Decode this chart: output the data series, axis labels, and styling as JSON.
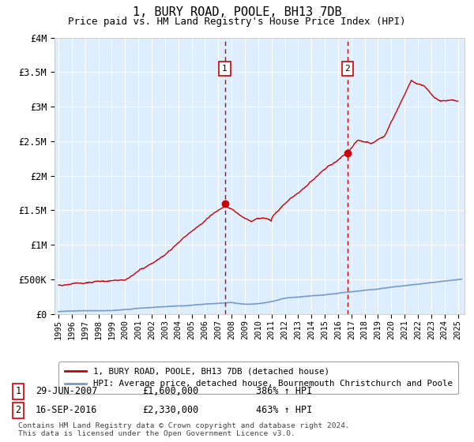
{
  "title": "1, BURY ROAD, POOLE, BH13 7DB",
  "subtitle": "Price paid vs. HM Land Registry's House Price Index (HPI)",
  "background_color": "#ffffff",
  "plot_bg_color": "#ddeeff",
  "grid_color": "#ffffff",
  "ylim": [
    0,
    4000000
  ],
  "yticks": [
    0,
    500000,
    1000000,
    1500000,
    2000000,
    2500000,
    3000000,
    3500000,
    4000000
  ],
  "ytick_labels": [
    "£0",
    "£500K",
    "£1M",
    "£1.5M",
    "£2M",
    "£2.5M",
    "£3M",
    "£3.5M",
    "£4M"
  ],
  "xlim_start": 1994.7,
  "xlim_end": 2025.5,
  "xtick_years": [
    1995,
    1996,
    1997,
    1998,
    1999,
    2000,
    2001,
    2002,
    2003,
    2004,
    2005,
    2006,
    2007,
    2008,
    2009,
    2010,
    2011,
    2012,
    2013,
    2014,
    2015,
    2016,
    2017,
    2018,
    2019,
    2020,
    2021,
    2022,
    2023,
    2024,
    2025
  ],
  "sale1_x": 2007.49,
  "sale1_y": 1600000,
  "sale1_label": "1",
  "sale2_x": 2016.71,
  "sale2_y": 2330000,
  "sale2_label": "2",
  "sale_box_color": "#ffffff",
  "sale_box_edge": "#cc0000",
  "sale_line_color": "#cc0000",
  "hpi_line_color": "#7799cc",
  "price_line_color": "#cc0000",
  "legend_label1": "1, BURY ROAD, POOLE, BH13 7DB (detached house)",
  "legend_label2": "HPI: Average price, detached house, Bournemouth Christchurch and Poole",
  "annotation1_date": "29-JUN-2007",
  "annotation1_price": "£1,600,000",
  "annotation1_hpi": "386% ↑ HPI",
  "annotation2_date": "16-SEP-2016",
  "annotation2_price": "£2,330,000",
  "annotation2_hpi": "463% ↑ HPI",
  "footer": "Contains HM Land Registry data © Crown copyright and database right 2024.\nThis data is licensed under the Open Government Licence v3.0."
}
